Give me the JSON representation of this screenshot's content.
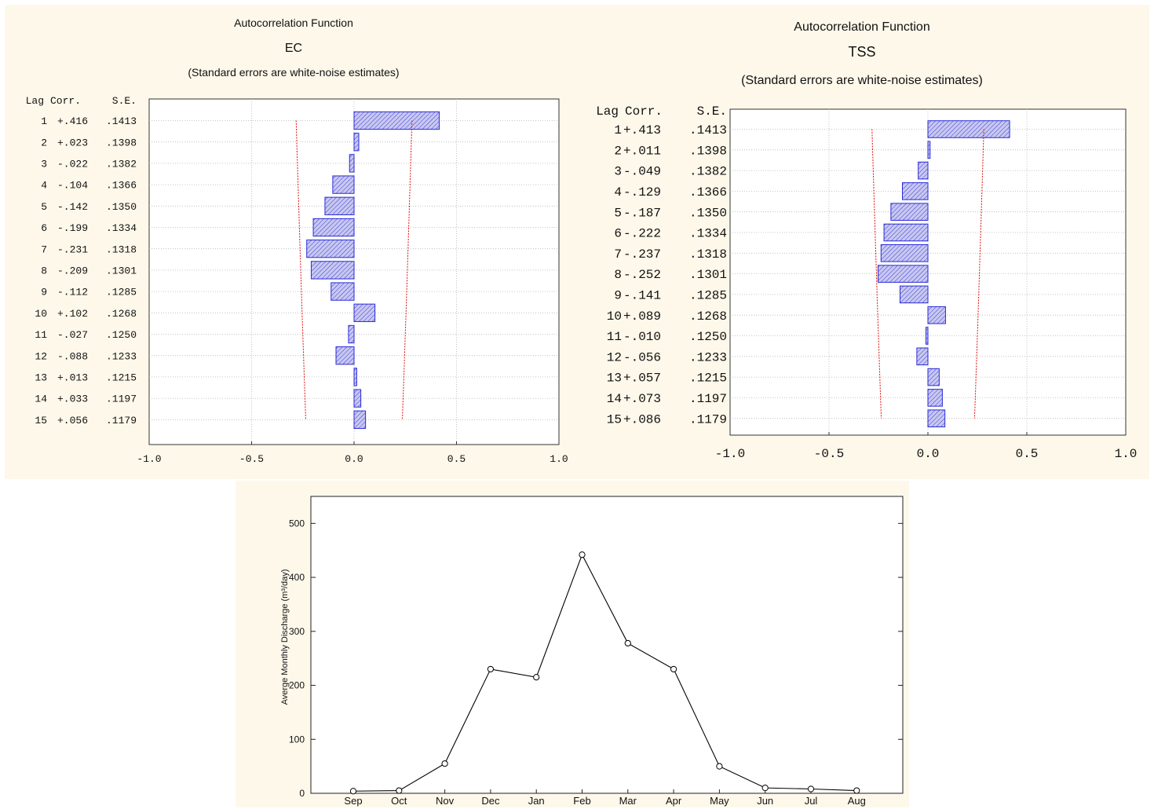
{
  "chart_data": [
    {
      "type": "bar",
      "orientation": "horizontal",
      "title": "Autocorrelation Function",
      "subtitle": "EC",
      "note": "(Standard errors are white-noise estimates)",
      "columns": [
        "Lag",
        "Corr.",
        "S.E."
      ],
      "lags": [
        1,
        2,
        3,
        4,
        5,
        6,
        7,
        8,
        9,
        10,
        11,
        12,
        13,
        14,
        15
      ],
      "corr_labels": [
        "+.416",
        "+.023",
        "-.022",
        "-.104",
        "-.142",
        "-.199",
        "-.231",
        "-.209",
        "-.112",
        "+.102",
        "-.027",
        "-.088",
        "+.013",
        "+.033",
        "+.056"
      ],
      "values": [
        0.416,
        0.023,
        -0.022,
        -0.104,
        -0.142,
        -0.199,
        -0.231,
        -0.209,
        -0.112,
        0.102,
        -0.027,
        -0.088,
        0.013,
        0.033,
        0.056
      ],
      "se_labels": [
        ".1413",
        ".1398",
        ".1382",
        ".1366",
        ".1350",
        ".1334",
        ".1318",
        ".1301",
        ".1285",
        ".1268",
        ".1250",
        ".1233",
        ".1215",
        ".1197",
        ".1179"
      ],
      "se": [
        0.1413,
        0.1398,
        0.1382,
        0.1366,
        0.135,
        0.1334,
        0.1318,
        0.1301,
        0.1285,
        0.1268,
        0.125,
        0.1233,
        0.1215,
        0.1197,
        0.1179
      ],
      "x_ticks": [
        "-1.0",
        "-0.5",
        "0.0",
        "0.5",
        "1.0"
      ],
      "xlim": [
        -1,
        1
      ],
      "grid": true,
      "bar_color": "#2a2ad8",
      "bar_fill": "#c8c8f0",
      "limit_color": "#dd1111"
    },
    {
      "type": "bar",
      "orientation": "horizontal",
      "title": "Autocorrelation Function",
      "subtitle": "TSS",
      "note": "(Standard errors are white-noise estimates)",
      "columns": [
        "Lag",
        "Corr.",
        "S.E."
      ],
      "lags": [
        1,
        2,
        3,
        4,
        5,
        6,
        7,
        8,
        9,
        10,
        11,
        12,
        13,
        14,
        15
      ],
      "corr_labels": [
        "+.413",
        "+.011",
        "-.049",
        "-.129",
        "-.187",
        "-.222",
        "-.237",
        "-.252",
        "-.141",
        "+.089",
        "-.010",
        "-.056",
        "+.057",
        "+.073",
        "+.086"
      ],
      "values": [
        0.413,
        0.011,
        -0.049,
        -0.129,
        -0.187,
        -0.222,
        -0.237,
        -0.252,
        -0.141,
        0.089,
        -0.01,
        -0.056,
        0.057,
        0.073,
        0.086
      ],
      "se_labels": [
        ".1413",
        ".1398",
        ".1382",
        ".1366",
        ".1350",
        ".1334",
        ".1318",
        ".1301",
        ".1285",
        ".1268",
        ".1250",
        ".1233",
        ".1215",
        ".1197",
        ".1179"
      ],
      "se": [
        0.1413,
        0.1398,
        0.1382,
        0.1366,
        0.135,
        0.1334,
        0.1318,
        0.1301,
        0.1285,
        0.1268,
        0.125,
        0.1233,
        0.1215,
        0.1197,
        0.1179
      ],
      "x_ticks": [
        "-1.0",
        "-0.5",
        "0.0",
        "0.5",
        "1.0"
      ],
      "xlim": [
        -1,
        1
      ],
      "grid": true,
      "bar_color": "#2a2ad8",
      "bar_fill": "#c8c8f0",
      "limit_color": "#dd1111"
    },
    {
      "type": "line",
      "ylabel": "Averge Monthly Discharge (m³/day)",
      "categories": [
        "Sep",
        "Oct",
        "Nov",
        "Dec",
        "Jan",
        "Feb",
        "Mar",
        "Apr",
        "May",
        "Jun",
        "Jul",
        "Aug"
      ],
      "values": [
        4,
        5,
        55,
        230,
        215,
        442,
        278,
        230,
        50,
        10,
        8,
        5
      ],
      "y_ticks": [
        "0",
        "100",
        "200",
        "300",
        "400",
        "500"
      ],
      "ylim": [
        0,
        550
      ],
      "grid": false,
      "line_color": "#000000"
    }
  ]
}
